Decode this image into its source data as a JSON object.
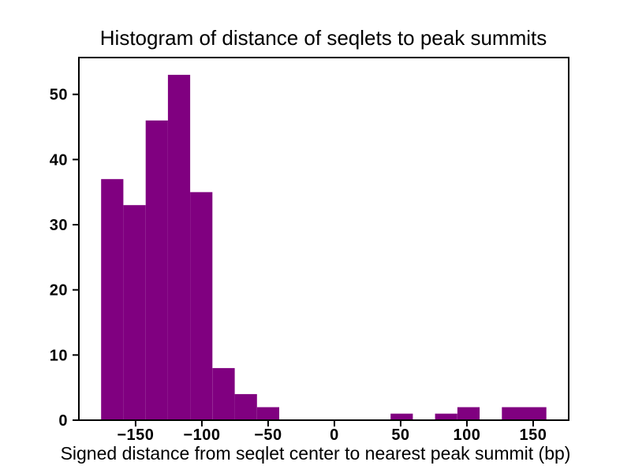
{
  "chart_data": {
    "type": "bar",
    "subtype": "histogram",
    "title": "Histogram of distance of seqlets to peak summits",
    "xlabel": "Signed distance from seqlet center to nearest peak summit (bp)",
    "ylabel": "",
    "bar_color": "#800080",
    "axis_color": "#000000",
    "background_color": "#ffffff",
    "grid": false,
    "legend": "none",
    "bin_edges": [
      -176.0,
      -159.2,
      -142.4,
      -125.6,
      -108.8,
      -92.0,
      -75.2,
      -58.4,
      -41.6,
      -24.8,
      -8.0,
      8.8,
      25.6,
      42.4,
      59.2,
      76.0,
      92.8,
      109.6,
      126.4,
      143.2,
      160.0
    ],
    "counts": [
      37,
      33,
      46,
      53,
      35,
      8,
      4,
      2,
      0,
      0,
      0,
      0,
      0,
      1,
      0,
      1,
      2,
      0,
      2,
      2
    ],
    "xlim": [
      -192.8,
      176.8
    ],
    "ylim": [
      0,
      55.65
    ],
    "x_ticks": [
      -150,
      -100,
      -50,
      0,
      50,
      100,
      150
    ],
    "y_ticks": [
      0,
      10,
      20,
      30,
      40,
      50
    ]
  }
}
